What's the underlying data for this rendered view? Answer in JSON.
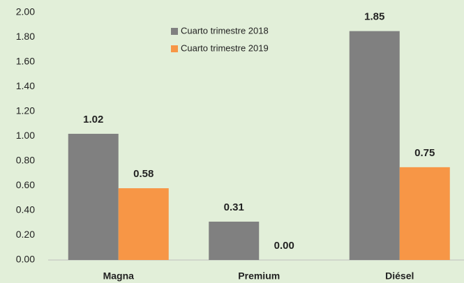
{
  "chart_data": {
    "type": "bar",
    "categories": [
      "Magna",
      "Premium",
      "Diésel"
    ],
    "series": [
      {
        "name": "Cuarto trimestre 2018",
        "color": "#808080",
        "values": [
          1.02,
          0.31,
          1.85
        ],
        "value_labels": [
          "1.02",
          "0.31",
          "1.85"
        ]
      },
      {
        "name": "Cuarto trimestre 2019",
        "color": "#f79646",
        "values": [
          0.58,
          0,
          0.75
        ],
        "value_labels": [
          "0.58",
          "0.00",
          "0.75"
        ]
      }
    ],
    "ylim": [
      0,
      2
    ],
    "yticks": [
      {
        "value": 0,
        "label": "0.00"
      },
      {
        "value": 0.2,
        "label": "0.20"
      },
      {
        "value": 0.4,
        "label": "0.40"
      },
      {
        "value": 0.6,
        "label": "0.60"
      },
      {
        "value": 0.8,
        "label": "0.80"
      },
      {
        "value": 1,
        "label": "1.00"
      },
      {
        "value": 1.2,
        "label": "1.20"
      },
      {
        "value": 1.4,
        "label": "1.40"
      },
      {
        "value": 1.6,
        "label": "1.60"
      },
      {
        "value": 1.8,
        "label": "1.80"
      },
      {
        "value": 2,
        "label": "2.00"
      }
    ],
    "grid": false,
    "legend": "top"
  }
}
